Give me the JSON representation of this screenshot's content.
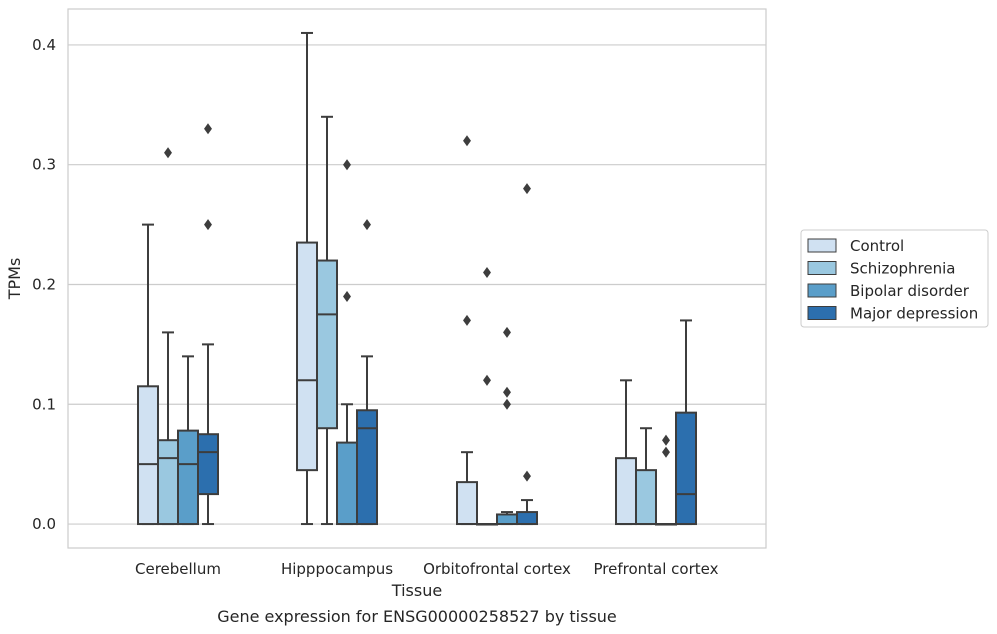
{
  "chart_data": {
    "type": "box",
    "title": "",
    "caption": "Gene expression for ENSG00000258527 by tissue",
    "xlabel": "Tissue",
    "ylabel": "TPMs",
    "ylim": [
      -0.02,
      0.43
    ],
    "yticks": [
      "0.0",
      "0.1",
      "0.2",
      "0.3",
      "0.4"
    ],
    "ytick_values": [
      0.0,
      0.1,
      0.2,
      0.3,
      0.4
    ],
    "grid": "horizontal",
    "legend_position": "right",
    "categories": [
      "Cerebellum",
      "Hipppocampus",
      "Orbitofrontal cortex",
      "Prefrontal cortex"
    ],
    "series": [
      {
        "name": "Control",
        "color": "#d0e1f2",
        "boxes": [
          {
            "whisker_low": 0.0,
            "q1": 0.0,
            "median": 0.05,
            "q3": 0.115,
            "whisker_high": 0.25,
            "outliers": []
          },
          {
            "whisker_low": 0.0,
            "q1": 0.045,
            "median": 0.12,
            "q3": 0.235,
            "whisker_high": 0.41,
            "outliers": []
          },
          {
            "whisker_low": 0.0,
            "q1": 0.0,
            "median": 0.0,
            "q3": 0.035,
            "whisker_high": 0.06,
            "outliers": [
              0.17,
              0.32
            ]
          },
          {
            "whisker_low": 0.0,
            "q1": 0.0,
            "median": 0.0,
            "q3": 0.055,
            "whisker_high": 0.12,
            "outliers": []
          }
        ]
      },
      {
        "name": "Schizophrenia",
        "color": "#9ac8e0",
        "boxes": [
          {
            "whisker_low": 0.0,
            "q1": 0.0,
            "median": 0.055,
            "q3": 0.07,
            "whisker_high": 0.16,
            "outliers": [
              0.31
            ]
          },
          {
            "whisker_low": 0.0,
            "q1": 0.08,
            "median": 0.175,
            "q3": 0.22,
            "whisker_high": 0.34,
            "outliers": []
          },
          {
            "whisker_low": 0.0,
            "q1": 0.0,
            "median": 0.0,
            "q3": 0.0,
            "whisker_high": 0.0,
            "outliers": [
              0.12,
              0.21
            ]
          },
          {
            "whisker_low": 0.0,
            "q1": 0.0,
            "median": 0.0,
            "q3": 0.045,
            "whisker_high": 0.08,
            "outliers": []
          }
        ]
      },
      {
        "name": "Bipolar disorder",
        "color": "#5a9ec9",
        "boxes": [
          {
            "whisker_low": 0.0,
            "q1": 0.0,
            "median": 0.05,
            "q3": 0.078,
            "whisker_high": 0.14,
            "outliers": []
          },
          {
            "whisker_low": 0.0,
            "q1": 0.0,
            "median": 0.0,
            "q3": 0.068,
            "whisker_high": 0.1,
            "outliers": [
              0.19,
              0.3
            ]
          },
          {
            "whisker_low": 0.0,
            "q1": 0.0,
            "median": 0.0,
            "q3": 0.008,
            "whisker_high": 0.01,
            "outliers": [
              0.1,
              0.11,
              0.16
            ]
          },
          {
            "whisker_low": 0.0,
            "q1": 0.0,
            "median": 0.0,
            "q3": 0.0,
            "whisker_high": 0.0,
            "outliers": [
              0.06,
              0.07
            ]
          }
        ]
      },
      {
        "name": "Major depression",
        "color": "#2c6fae",
        "boxes": [
          {
            "whisker_low": 0.0,
            "q1": 0.025,
            "median": 0.06,
            "q3": 0.075,
            "whisker_high": 0.15,
            "outliers": [
              0.25,
              0.33
            ]
          },
          {
            "whisker_low": 0.0,
            "q1": 0.0,
            "median": 0.08,
            "q3": 0.095,
            "whisker_high": 0.14,
            "outliers": [
              0.25
            ]
          },
          {
            "whisker_low": 0.0,
            "q1": 0.0,
            "median": 0.0,
            "q3": 0.01,
            "whisker_high": 0.02,
            "outliers": [
              0.04,
              0.28
            ]
          },
          {
            "whisker_low": 0.0,
            "q1": 0.0,
            "median": 0.025,
            "q3": 0.093,
            "whisker_high": 0.17,
            "outliers": []
          }
        ]
      }
    ]
  }
}
